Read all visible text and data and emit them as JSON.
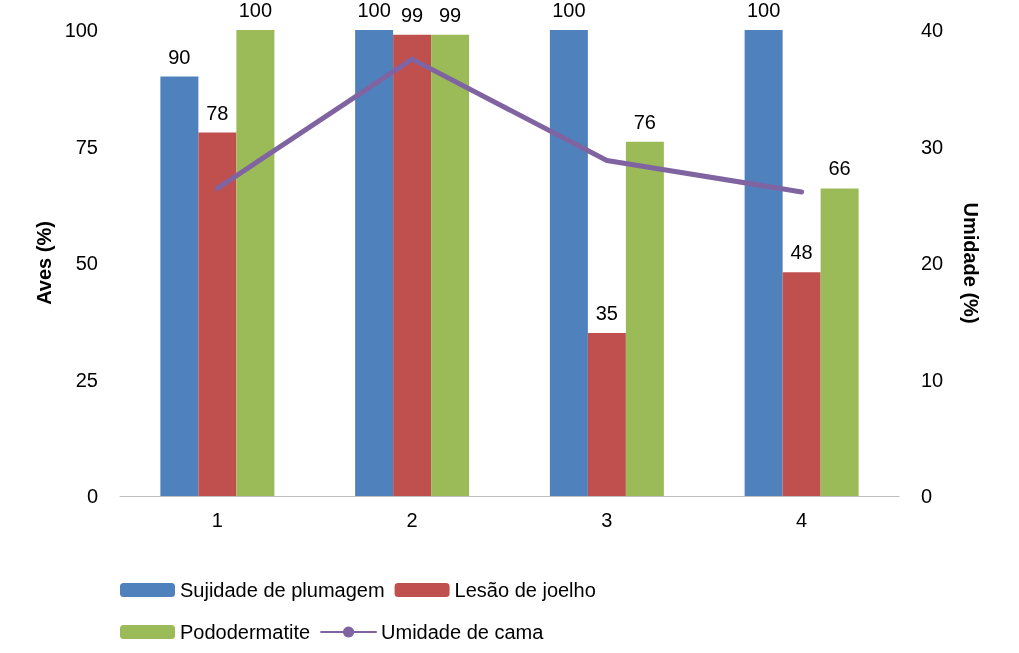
{
  "chart_data": {
    "type": "bar",
    "categories": [
      "1",
      "2",
      "3",
      "4"
    ],
    "ylabel": "Aves (%)",
    "y2label": "Umidade (%)",
    "ylim": [
      0,
      100
    ],
    "yticks": [
      0,
      25,
      50,
      75,
      100
    ],
    "y2lim": [
      0,
      40
    ],
    "y2ticks": [
      0,
      10,
      20,
      30,
      40
    ],
    "series": [
      {
        "name": "Sujidade de plumagem",
        "color": "#4f81bd",
        "values": [
          90,
          100,
          100,
          100
        ],
        "value_labels": [
          "90",
          "100",
          "100",
          "100"
        ]
      },
      {
        "name": "Lesão de joelho",
        "color": "#c0504d",
        "values": [
          78,
          99,
          35,
          48
        ],
        "value_labels": [
          "78",
          "99",
          "35",
          "48"
        ]
      },
      {
        "name": "Pododermatite",
        "color": "#9bbb59",
        "values": [
          100,
          99,
          76,
          66
        ],
        "value_labels": [
          "100",
          "99",
          "76",
          "66"
        ]
      },
      {
        "name": "Umidade de cama",
        "type": "line",
        "axis": "y2",
        "color": "#8064a2",
        "values": [
          26.4,
          37.5,
          28.8,
          26.1
        ]
      }
    ],
    "grid": false,
    "legend": "bottom",
    "marker": "none"
  }
}
